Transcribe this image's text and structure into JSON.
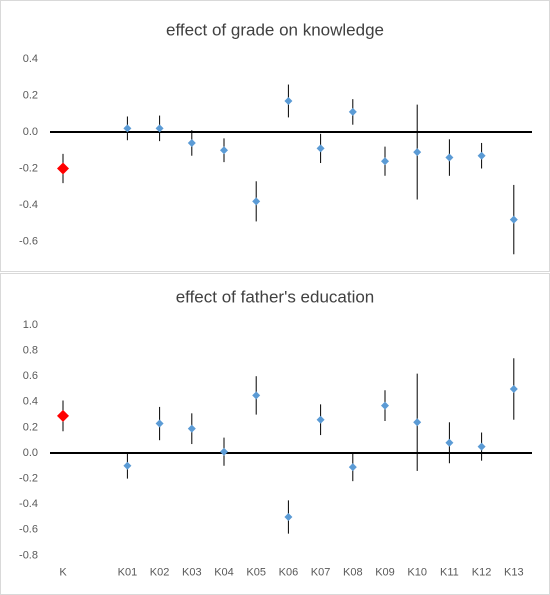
{
  "chart_data": [
    {
      "type": "errorbar",
      "title": "effect of grade on knowledge",
      "values": [
        -0.2,
        null,
        0.02,
        0.02,
        -0.06,
        -0.1,
        -0.38,
        0.17,
        -0.09,
        0.11,
        -0.16,
        -0.11,
        -0.14,
        -0.13,
        -0.48
      ],
      "errors": [
        0.08,
        null,
        0.065,
        0.07,
        0.07,
        0.065,
        0.11,
        0.09,
        0.08,
        0.07,
        0.08,
        0.26,
        0.1,
        0.07,
        0.19
      ],
      "colors": [
        "#ff0000",
        null,
        "#5b9bd5",
        "#5b9bd5",
        "#5b9bd5",
        "#5b9bd5",
        "#5b9bd5",
        "#5b9bd5",
        "#5b9bd5",
        "#5b9bd5",
        "#5b9bd5",
        "#5b9bd5",
        "#5b9bd5",
        "#5b9bd5",
        "#5b9bd5"
      ],
      "ylim": [
        -0.7,
        0.4
      ],
      "yticks": [
        -0.6,
        -0.4,
        -0.2,
        {
          "value": 0,
          "label": "0.0"
        },
        0.2,
        0.4
      ]
    },
    {
      "type": "errorbar",
      "title": "effect of father's education",
      "categories": [
        "K",
        null,
        "K01",
        "K02",
        "K03",
        "K04",
        "K05",
        "K06",
        "K07",
        "K08",
        "K09",
        "K10",
        "K11",
        "K12",
        "K13"
      ],
      "values": [
        0.29,
        null,
        -0.1,
        0.23,
        0.19,
        0.01,
        0.45,
        -0.5,
        0.26,
        -0.11,
        0.37,
        0.24,
        0.08,
        0.05,
        0.5
      ],
      "errors": [
        0.12,
        null,
        0.1,
        0.13,
        0.12,
        0.11,
        0.15,
        0.13,
        0.12,
        0.11,
        0.12,
        0.38,
        0.16,
        0.11,
        0.24
      ],
      "colors": [
        "#ff0000",
        null,
        "#5b9bd5",
        "#5b9bd5",
        "#5b9bd5",
        "#5b9bd5",
        "#5b9bd5",
        "#5b9bd5",
        "#5b9bd5",
        "#5b9bd5",
        "#5b9bd5",
        "#5b9bd5",
        "#5b9bd5",
        "#5b9bd5",
        "#5b9bd5"
      ],
      "ylim": [
        -0.8,
        1.0
      ],
      "yticks": [
        -0.8,
        -0.6,
        -0.4,
        -0.2,
        {
          "value": 0,
          "label": "0.0"
        },
        0.2,
        0.4,
        0.6,
        0.8,
        {
          "value": 1,
          "label": "1.0"
        }
      ]
    }
  ]
}
